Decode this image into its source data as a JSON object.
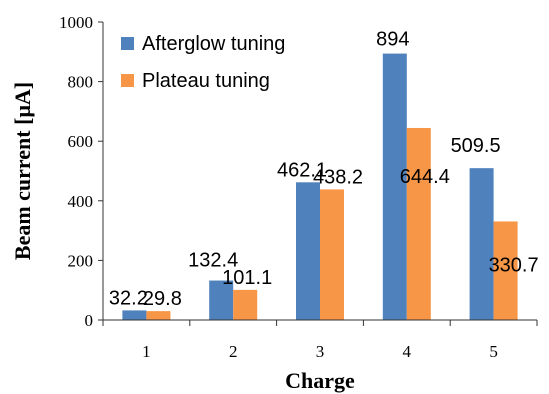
{
  "chart_data": {
    "type": "bar",
    "categories": [
      "1",
      "2",
      "3",
      "4",
      "5"
    ],
    "series": [
      {
        "name": "Afterglow tuning",
        "values": [
          32.2,
          132.4,
          462.1,
          894,
          509.5
        ],
        "labels": [
          "32.2",
          "132.4",
          "462.1",
          "894",
          "509.5"
        ],
        "color": "#4f81bd"
      },
      {
        "name": "Plateau tuning",
        "values": [
          29.8,
          101.1,
          438.2,
          644.4,
          330.7
        ],
        "labels": [
          "29.8",
          "101.1",
          "438.2",
          "644.4",
          "330.7"
        ],
        "color": "#f79646"
      }
    ],
    "xlabel": "Charge",
    "ylabel": "Beam current [μA]",
    "ylim": [
      0,
      1000
    ],
    "yticks": [
      0,
      200,
      400,
      600,
      800,
      1000
    ],
    "grid": false,
    "legend": "top-left"
  }
}
